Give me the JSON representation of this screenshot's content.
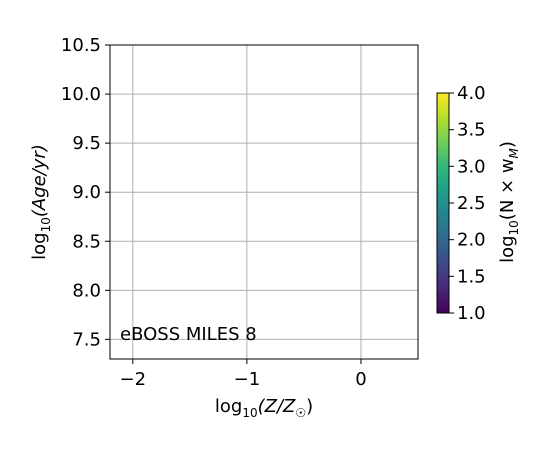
{
  "chart_data": {
    "type": "heatmap",
    "title": "",
    "xlabel": {
      "prefix": "log",
      "sub": "10",
      "body": "(Z/Z",
      "sun": "☉",
      "suffix": ")"
    },
    "ylabel": {
      "prefix": "log",
      "sub": "10",
      "body": "(Age/yr)"
    },
    "xlim": [
      -2.2,
      0.5
    ],
    "ylim": [
      7.3,
      10.5
    ],
    "xticks": [
      -2,
      -1,
      0
    ],
    "xtick_labels": [
      "−2",
      "−1",
      "0"
    ],
    "yticks": [
      7.5,
      8.0,
      8.5,
      9.0,
      9.5,
      10.0,
      10.5
    ],
    "ytick_labels": [
      "7.5",
      "8.0",
      "8.5",
      "9.0",
      "9.5",
      "10.0",
      "10.5"
    ],
    "grid": true,
    "points": [],
    "annotation": "eBOSS MILES 8",
    "colorbar": {
      "label": {
        "prefix": "log",
        "sub": "10",
        "body": "(N × w",
        "sub2": "M",
        "suffix": ")"
      },
      "range": [
        1.0,
        4.0
      ],
      "ticks": [
        1.0,
        1.5,
        2.0,
        2.5,
        3.0,
        3.5,
        4.0
      ],
      "tick_labels": [
        "1.0",
        "1.5",
        "2.0",
        "2.5",
        "3.0",
        "3.5",
        "4.0"
      ],
      "colormap": "viridis",
      "colors": [
        "#440154",
        "#482878",
        "#3e4989",
        "#31688e",
        "#26828e",
        "#1f9e89",
        "#35b779",
        "#6ece58",
        "#b5de2b",
        "#fde725"
      ]
    }
  }
}
